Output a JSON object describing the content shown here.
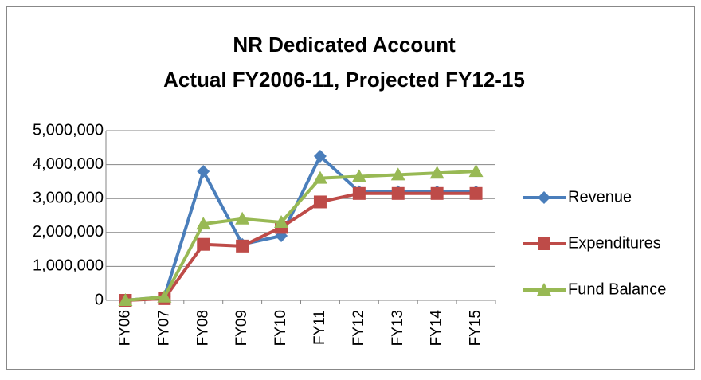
{
  "chart_data": {
    "type": "line",
    "title": "NR Dedicated Account",
    "subtitle": "Actual FY2006-11, Projected FY12-15",
    "categories": [
      "FY06",
      "FY07",
      "FY08",
      "FY09",
      "FY10",
      "FY11",
      "FY12",
      "FY13",
      "FY14",
      "FY15"
    ],
    "series": [
      {
        "name": "Revenue",
        "color": "#4a7ebb",
        "marker": "diamond",
        "values": [
          0,
          100000,
          3800000,
          1650000,
          1900000,
          4250000,
          3200000,
          3200000,
          3200000,
          3200000
        ]
      },
      {
        "name": "Expenditures",
        "color": "#be4b48",
        "marker": "square",
        "values": [
          0,
          50000,
          1650000,
          1600000,
          2150000,
          2900000,
          3150000,
          3150000,
          3150000,
          3150000
        ]
      },
      {
        "name": "Fund Balance",
        "color": "#98b954",
        "marker": "triangle",
        "values": [
          0,
          100000,
          2250000,
          2400000,
          2300000,
          3600000,
          3650000,
          3700000,
          3750000,
          3800000
        ]
      }
    ],
    "ylim": [
      0,
      5000000
    ],
    "yticks": [
      0,
      {
        "value": 1000000,
        "label": "1,000,000"
      },
      {
        "value": 2000000,
        "label": "2,000,000"
      },
      {
        "value": 3000000,
        "label": "3,000,000"
      },
      {
        "value": 4000000,
        "label": "4,000,000"
      },
      {
        "value": 5000000,
        "label": "5,000,000"
      }
    ],
    "grid": true,
    "legend": "right"
  }
}
